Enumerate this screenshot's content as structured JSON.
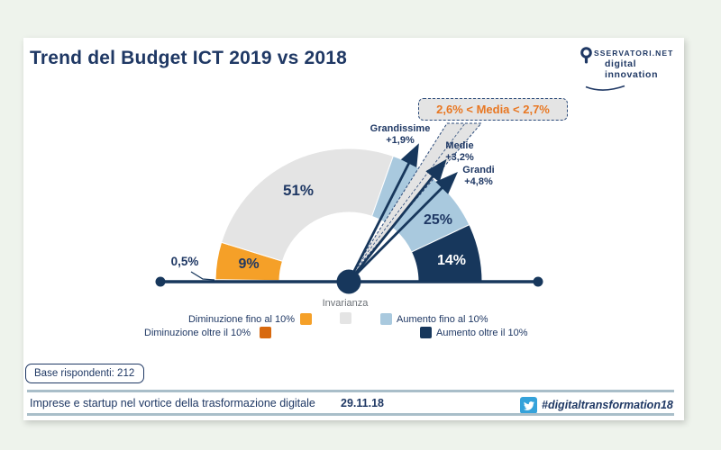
{
  "slide": {
    "title": "Trend del Budget ICT 2019 vs 2018",
    "logo": {
      "line1": "SSERVATORI.NET",
      "line2": "digital innovation"
    },
    "base_respondents": "Base rispondenti: 212",
    "footer": {
      "caption": "Imprese e startup nel vortice della trasformazione digitale",
      "date": "29.11.18",
      "hashtag": "#digitaltransformation18"
    }
  },
  "chart_data": {
    "type": "gauge-donut",
    "title": "Trend del Budget ICT 2019 vs 2018",
    "center_label": "Invarianza",
    "geometry_note": "half-donut gauge, segments left-to-right over 180 degrees",
    "segments": [
      {
        "label": "Diminuzione oltre il 10%",
        "value_pct": 0.5,
        "display": "0,5%",
        "color": "#d8690e"
      },
      {
        "label": "Diminuzione fino al 10%",
        "value_pct": 9,
        "display": "9%",
        "color": "#f5a028"
      },
      {
        "label": "Invarianza",
        "value_pct": 51,
        "display": "51%",
        "color": "#e4e4e4"
      },
      {
        "label": "Aumento fino al 10%",
        "value_pct": 25,
        "display": "25%",
        "color": "#a9c9de"
      },
      {
        "label": "Aumento oltre il 10%",
        "value_pct": 14,
        "display": "14%",
        "color": "#17375c"
      }
    ],
    "annotations": {
      "callout": "2,6% < Media < 2,7%",
      "arrows": [
        {
          "label": "Grandissime",
          "value": "+1,9%"
        },
        {
          "label": "Medie",
          "value": "+3,2%"
        },
        {
          "label": "Grandi",
          "value": "+4,8%"
        }
      ]
    },
    "legend": [
      {
        "label": "Diminuzione fino al 10%",
        "color": "#f5a028"
      },
      {
        "label": "Invarianza",
        "color": "#e4e4e4"
      },
      {
        "label": "Aumento fino al 10%",
        "color": "#a9c9de"
      },
      {
        "label": "Diminuzione oltre il 10%",
        "color": "#d8690e"
      },
      {
        "label": "Aumento oltre il 10%",
        "color": "#17375c"
      }
    ],
    "colors": {
      "navy": "#17375c",
      "text_navy": "#1f3864",
      "callout_orange": "#e87722",
      "divider": "#a9bec9",
      "twitter_blue": "#35a2da",
      "background": "#eef3ec"
    }
  }
}
